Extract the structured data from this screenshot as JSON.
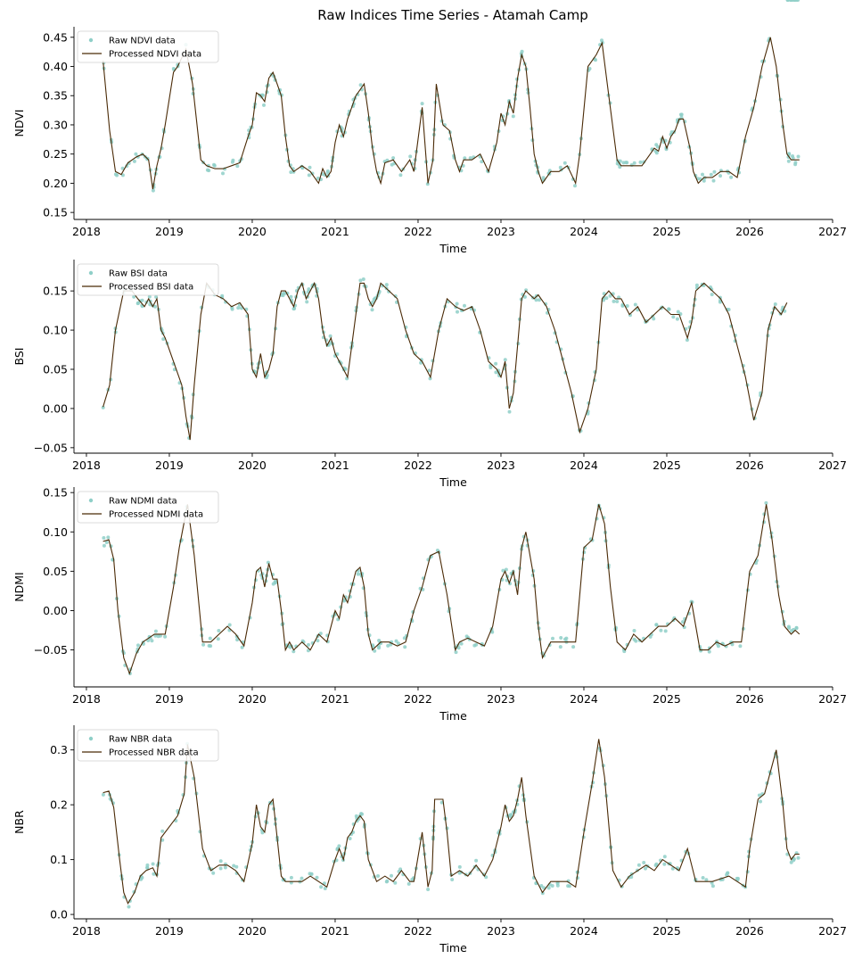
{
  "chart_data": {
    "title": "Raw Indices Time Series - Atamah Camp",
    "type": "line",
    "xlim": [
      2017.85,
      2027.0
    ],
    "x_ticks": [
      2018,
      2019,
      2020,
      2021,
      2022,
      2023,
      2024,
      2025,
      2026,
      2027
    ],
    "grid": false,
    "legend_placement": "top-left",
    "colors": {
      "raw": "#8fcfc8",
      "processed": "#4a2a06"
    },
    "panels": [
      {
        "ylabel": "NDVI",
        "xlabel": "Time",
        "ylim": [
          0.138,
          0.468
        ],
        "y_ticks": [
          0.15,
          0.2,
          0.25,
          0.3,
          0.35,
          0.4,
          0.45
        ],
        "y_tick_labels": [
          "0.15",
          "0.20",
          "0.25",
          "0.30",
          "0.35",
          "0.40",
          "0.45"
        ],
        "legend": [
          "Raw NDVI data",
          "Processed NDVI data"
        ],
        "processed_x": [
          2018.2,
          2018.28,
          2018.35,
          2018.42,
          2018.5,
          2018.6,
          2018.68,
          2018.75,
          2018.8,
          2018.85,
          2018.9,
          2018.95,
          2019.05,
          2019.1,
          2019.2,
          2019.28,
          2019.38,
          2019.45,
          2019.55,
          2019.65,
          2019.75,
          2019.85,
          2019.95,
          2020.0,
          2020.05,
          2020.1,
          2020.15,
          2020.2,
          2020.25,
          2020.3,
          2020.35,
          2020.4,
          2020.45,
          2020.5,
          2020.6,
          2020.7,
          2020.8,
          2020.85,
          2020.9,
          2020.95,
          2021.0,
          2021.05,
          2021.1,
          2021.15,
          2021.2,
          2021.25,
          2021.3,
          2021.35,
          2021.4,
          2021.45,
          2021.5,
          2021.55,
          2021.6,
          2021.7,
          2021.8,
          2021.9,
          2021.95,
          2022.05,
          2022.12,
          2022.18,
          2022.22,
          2022.3,
          2022.38,
          2022.45,
          2022.5,
          2022.55,
          2022.65,
          2022.75,
          2022.85,
          2022.95,
          2023.0,
          2023.05,
          2023.1,
          2023.15,
          2023.2,
          2023.25,
          2023.3,
          2023.35,
          2023.4,
          2023.45,
          2023.5,
          2023.6,
          2023.7,
          2023.8,
          2023.9,
          2023.95,
          2024.05,
          2024.15,
          2024.22,
          2024.3,
          2024.4,
          2024.45,
          2024.5,
          2024.6,
          2024.7,
          2024.8,
          2024.85,
          2024.9,
          2024.95,
          2025.0,
          2025.05,
          2025.1,
          2025.15,
          2025.2,
          2025.28,
          2025.32,
          2025.38,
          2025.45,
          2025.55,
          2025.65,
          2025.75,
          2025.85,
          2025.95,
          2026.05,
          2026.15,
          2026.25,
          2026.32,
          2026.4,
          2026.45,
          2026.5,
          2026.55,
          2026.6
        ],
        "processed_y": [
          0.41,
          0.29,
          0.22,
          0.215,
          0.235,
          0.245,
          0.25,
          0.24,
          0.19,
          0.23,
          0.26,
          0.3,
          0.39,
          0.4,
          0.43,
          0.37,
          0.24,
          0.23,
          0.225,
          0.225,
          0.23,
          0.235,
          0.28,
          0.3,
          0.355,
          0.35,
          0.34,
          0.38,
          0.39,
          0.37,
          0.35,
          0.28,
          0.23,
          0.22,
          0.23,
          0.22,
          0.2,
          0.225,
          0.21,
          0.22,
          0.27,
          0.3,
          0.28,
          0.31,
          0.33,
          0.35,
          0.36,
          0.37,
          0.32,
          0.26,
          0.22,
          0.2,
          0.235,
          0.24,
          0.22,
          0.24,
          0.22,
          0.33,
          0.2,
          0.24,
          0.37,
          0.3,
          0.29,
          0.24,
          0.22,
          0.24,
          0.24,
          0.25,
          0.22,
          0.27,
          0.32,
          0.3,
          0.34,
          0.32,
          0.38,
          0.42,
          0.4,
          0.33,
          0.25,
          0.22,
          0.2,
          0.22,
          0.22,
          0.23,
          0.2,
          0.25,
          0.4,
          0.42,
          0.44,
          0.35,
          0.24,
          0.23,
          0.23,
          0.23,
          0.23,
          0.25,
          0.26,
          0.255,
          0.28,
          0.26,
          0.28,
          0.29,
          0.31,
          0.31,
          0.26,
          0.22,
          0.2,
          0.21,
          0.21,
          0.22,
          0.22,
          0.21,
          0.28,
          0.33,
          0.4,
          0.45,
          0.4,
          0.3,
          0.25,
          0.24,
          0.24,
          0.24
        ]
      },
      {
        "ylabel": "BSI",
        "xlabel": "Time",
        "ylim": [
          -0.057,
          0.19
        ],
        "y_ticks": [
          -0.05,
          0.0,
          0.05,
          0.1,
          0.15
        ],
        "y_tick_labels": [
          "−0.05",
          "0.00",
          "0.05",
          "0.10",
          "0.15"
        ],
        "legend": [
          "Raw BSI data",
          "Processed BSI data"
        ],
        "processed_x": [
          2018.2,
          2018.28,
          2018.35,
          2018.45,
          2018.55,
          2018.62,
          2018.7,
          2018.75,
          2018.8,
          2018.85,
          2018.9,
          2018.95,
          2019.05,
          2019.15,
          2019.2,
          2019.25,
          2019.3,
          2019.38,
          2019.45,
          2019.55,
          2019.65,
          2019.75,
          2019.85,
          2019.95,
          2020.0,
          2020.05,
          2020.1,
          2020.15,
          2020.2,
          2020.25,
          2020.3,
          2020.35,
          2020.4,
          2020.45,
          2020.5,
          2020.55,
          2020.6,
          2020.65,
          2020.7,
          2020.75,
          2020.8,
          2020.85,
          2020.9,
          2020.95,
          2021.0,
          2021.05,
          2021.1,
          2021.15,
          2021.2,
          2021.25,
          2021.3,
          2021.35,
          2021.4,
          2021.45,
          2021.5,
          2021.55,
          2021.65,
          2021.75,
          2021.85,
          2021.95,
          2022.05,
          2022.15,
          2022.25,
          2022.35,
          2022.45,
          2022.55,
          2022.65,
          2022.75,
          2022.85,
          2022.95,
          2023.0,
          2023.05,
          2023.1,
          2023.15,
          2023.2,
          2023.25,
          2023.3,
          2023.4,
          2023.45,
          2023.55,
          2023.65,
          2023.75,
          2023.85,
          2023.95,
          2024.05,
          2024.15,
          2024.22,
          2024.3,
          2024.38,
          2024.45,
          2024.55,
          2024.65,
          2024.75,
          2024.85,
          2024.95,
          2025.05,
          2025.15,
          2025.25,
          2025.3,
          2025.35,
          2025.45,
          2025.55,
          2025.65,
          2025.75,
          2025.85,
          2025.95,
          2026.05,
          2026.15,
          2026.22,
          2026.3,
          2026.38,
          2026.45,
          2026.5,
          2026.55,
          2026.6
        ],
        "processed_y": [
          0.002,
          0.03,
          0.1,
          0.15,
          0.15,
          0.14,
          0.13,
          0.14,
          0.13,
          0.14,
          0.1,
          0.09,
          0.06,
          0.03,
          -0.01,
          -0.04,
          0.03,
          0.12,
          0.16,
          0.145,
          0.14,
          0.13,
          0.135,
          0.12,
          0.05,
          0.04,
          0.07,
          0.04,
          0.05,
          0.07,
          0.13,
          0.15,
          0.15,
          0.14,
          0.13,
          0.15,
          0.16,
          0.14,
          0.15,
          0.16,
          0.14,
          0.1,
          0.08,
          0.09,
          0.07,
          0.06,
          0.05,
          0.04,
          0.08,
          0.12,
          0.16,
          0.16,
          0.14,
          0.13,
          0.14,
          0.16,
          0.15,
          0.14,
          0.1,
          0.07,
          0.06,
          0.04,
          0.1,
          0.14,
          0.13,
          0.125,
          0.13,
          0.1,
          0.06,
          0.05,
          0.04,
          0.06,
          0.0,
          0.02,
          0.08,
          0.14,
          0.15,
          0.14,
          0.145,
          0.13,
          0.1,
          0.06,
          0.02,
          -0.03,
          0.0,
          0.05,
          0.14,
          0.15,
          0.14,
          0.14,
          0.12,
          0.13,
          0.11,
          0.12,
          0.13,
          0.12,
          0.12,
          0.09,
          0.11,
          0.15,
          0.16,
          0.15,
          0.14,
          0.12,
          0.08,
          0.04,
          -0.015,
          0.02,
          0.1,
          0.13,
          0.12,
          0.135
        ],
        "processed_x_note": ""
      },
      {
        "ylabel": "NDMI",
        "xlabel": "Time",
        "ylim": [
          -0.097,
          0.157
        ],
        "y_ticks": [
          -0.05,
          0.0,
          0.05,
          0.1,
          0.15
        ],
        "y_tick_labels": [
          "−0.05",
          "0.00",
          "0.05",
          "0.10",
          "0.15"
        ],
        "legend": [
          "Raw NDMI data",
          "Processed NDMI data"
        ],
        "processed_x": [
          2018.2,
          2018.27,
          2018.33,
          2018.38,
          2018.45,
          2018.52,
          2018.6,
          2018.68,
          2018.75,
          2018.82,
          2018.88,
          2018.95,
          2019.05,
          2019.12,
          2019.22,
          2019.3,
          2019.4,
          2019.5,
          2019.6,
          2019.7,
          2019.8,
          2019.9,
          2020.0,
          2020.05,
          2020.1,
          2020.15,
          2020.2,
          2020.25,
          2020.3,
          2020.35,
          2020.4,
          2020.45,
          2020.5,
          2020.6,
          2020.7,
          2020.8,
          2020.9,
          2021.0,
          2021.05,
          2021.1,
          2021.15,
          2021.2,
          2021.25,
          2021.3,
          2021.35,
          2021.4,
          2021.45,
          2021.5,
          2021.55,
          2021.65,
          2021.75,
          2021.85,
          2021.95,
          2022.05,
          2022.15,
          2022.25,
          2022.35,
          2022.45,
          2022.5,
          2022.6,
          2022.7,
          2022.8,
          2022.9,
          2023.0,
          2023.05,
          2023.1,
          2023.15,
          2023.2,
          2023.25,
          2023.3,
          2023.4,
          2023.45,
          2023.5,
          2023.6,
          2023.7,
          2023.8,
          2023.9,
          2024.0,
          2024.1,
          2024.18,
          2024.25,
          2024.32,
          2024.4,
          2024.5,
          2024.6,
          2024.7,
          2024.8,
          2024.9,
          2025.0,
          2025.1,
          2025.2,
          2025.3,
          2025.4,
          2025.5,
          2025.6,
          2025.7,
          2025.8,
          2025.9,
          2026.0,
          2026.1,
          2026.2,
          2026.27,
          2026.35,
          2026.42,
          2026.5,
          2026.55,
          2026.6
        ],
        "processed_y": [
          0.088,
          0.09,
          0.065,
          0.0,
          -0.06,
          -0.08,
          -0.055,
          -0.04,
          -0.035,
          -0.03,
          -0.03,
          -0.03,
          0.03,
          0.08,
          0.135,
          0.07,
          -0.04,
          -0.04,
          -0.03,
          -0.02,
          -0.03,
          -0.045,
          0.01,
          0.05,
          0.055,
          0.03,
          0.06,
          0.04,
          0.04,
          0.0,
          -0.05,
          -0.04,
          -0.05,
          -0.04,
          -0.05,
          -0.03,
          -0.04,
          0.0,
          -0.01,
          0.02,
          0.01,
          0.03,
          0.05,
          0.055,
          0.03,
          -0.03,
          -0.05,
          -0.045,
          -0.04,
          -0.04,
          -0.045,
          -0.04,
          0.0,
          0.03,
          0.07,
          0.075,
          0.02,
          -0.05,
          -0.04,
          -0.035,
          -0.04,
          -0.045,
          -0.02,
          0.04,
          0.05,
          0.035,
          0.05,
          0.02,
          0.08,
          0.1,
          0.04,
          -0.02,
          -0.06,
          -0.04,
          -0.04,
          -0.04,
          -0.04,
          0.08,
          0.09,
          0.135,
          0.11,
          0.03,
          -0.04,
          -0.05,
          -0.03,
          -0.04,
          -0.03,
          -0.02,
          -0.02,
          -0.01,
          -0.02,
          0.01,
          -0.05,
          -0.05,
          -0.04,
          -0.045,
          -0.04,
          -0.04,
          0.05,
          0.07,
          0.135,
          0.09,
          0.02,
          -0.02,
          -0.03,
          -0.025,
          -0.03
        ]
      },
      {
        "ylabel": "NBR",
        "xlabel": "Time",
        "ylim": [
          -0.008,
          0.345
        ],
        "y_ticks": [
          0.0,
          0.1,
          0.2,
          0.3
        ],
        "y_tick_labels": [
          "0.0",
          "0.1",
          "0.2",
          "0.3"
        ],
        "legend": [
          "Raw NBR data",
          "Processed NBR data"
        ],
        "processed_x": [
          2018.2,
          2018.27,
          2018.33,
          2018.4,
          2018.45,
          2018.5,
          2018.58,
          2018.65,
          2018.72,
          2018.8,
          2018.85,
          2018.9,
          2019.1,
          2019.18,
          2019.22,
          2019.3,
          2019.4,
          2019.5,
          2019.6,
          2019.7,
          2019.8,
          2019.9,
          2020.0,
          2020.05,
          2020.1,
          2020.15,
          2020.2,
          2020.25,
          2020.3,
          2020.35,
          2020.4,
          2020.5,
          2020.6,
          2020.7,
          2020.8,
          2020.9,
          2021.0,
          2021.05,
          2021.1,
          2021.15,
          2021.2,
          2021.25,
          2021.3,
          2021.35,
          2021.4,
          2021.5,
          2021.6,
          2021.7,
          2021.8,
          2021.9,
          2021.95,
          2022.05,
          2022.12,
          2022.17,
          2022.2,
          2022.3,
          2022.35,
          2022.4,
          2022.5,
          2022.6,
          2022.7,
          2022.8,
          2022.9,
          2023.0,
          2023.05,
          2023.1,
          2023.15,
          2023.2,
          2023.25,
          2023.3,
          2023.4,
          2023.5,
          2023.6,
          2023.7,
          2023.8,
          2023.9,
          2024.0,
          2024.1,
          2024.18,
          2024.25,
          2024.35,
          2024.45,
          2024.55,
          2024.65,
          2024.75,
          2024.85,
          2024.95,
          2025.05,
          2025.15,
          2025.25,
          2025.35,
          2025.45,
          2025.55,
          2025.65,
          2025.75,
          2025.85,
          2025.95,
          2026.0,
          2026.1,
          2026.18,
          2026.25,
          2026.32,
          2026.4,
          2026.45,
          2026.5,
          2026.55,
          2026.6
        ],
        "processed_y": [
          0.222,
          0.225,
          0.195,
          0.1,
          0.04,
          0.02,
          0.04,
          0.07,
          0.08,
          0.085,
          0.07,
          0.14,
          0.18,
          0.22,
          0.31,
          0.25,
          0.12,
          0.08,
          0.09,
          0.09,
          0.08,
          0.06,
          0.13,
          0.2,
          0.16,
          0.15,
          0.2,
          0.21,
          0.14,
          0.07,
          0.06,
          0.06,
          0.06,
          0.07,
          0.06,
          0.05,
          0.1,
          0.12,
          0.1,
          0.14,
          0.15,
          0.17,
          0.18,
          0.17,
          0.1,
          0.06,
          0.07,
          0.06,
          0.08,
          0.06,
          0.06,
          0.15,
          0.05,
          0.08,
          0.21,
          0.21,
          0.15,
          0.07,
          0.08,
          0.07,
          0.09,
          0.07,
          0.1,
          0.16,
          0.2,
          0.17,
          0.18,
          0.21,
          0.25,
          0.18,
          0.07,
          0.04,
          0.06,
          0.06,
          0.06,
          0.05,
          0.15,
          0.24,
          0.32,
          0.25,
          0.08,
          0.05,
          0.07,
          0.08,
          0.09,
          0.08,
          0.1,
          0.09,
          0.08,
          0.12,
          0.06,
          0.06,
          0.06,
          0.065,
          0.07,
          0.06,
          0.05,
          0.12,
          0.21,
          0.22,
          0.26,
          0.3,
          0.2,
          0.12,
          0.1,
          0.11,
          0.11
        ]
      }
    ]
  }
}
